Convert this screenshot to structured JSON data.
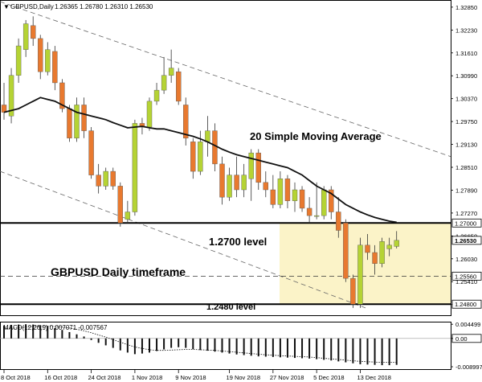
{
  "header": {
    "symbol_label": "GBPUSD,Daily",
    "ohlc": "1.26365 1.26780 1.26310 1.26530"
  },
  "annotations": {
    "sma_label": "20 Simple Moving Average",
    "level_1270": "1.2700 level",
    "level_1248": "1.2480 level",
    "timeframe": "GBPUSD Daily timeframe"
  },
  "colors": {
    "bull": "#b5d334",
    "bear": "#e8792f",
    "sma": "#111111",
    "highlight": "#fbf3c8",
    "frame": "#000000"
  },
  "macd": {
    "label": "MACD(12,26,9) 0.007071 -0.007567",
    "ticks": [
      "0.004499",
      "0.00",
      "-0.008997"
    ]
  },
  "chart_data": {
    "type": "candlestick",
    "symbol": "GBPUSD",
    "timeframe": "Daily",
    "last_ohlc": {
      "open": 1.26365,
      "high": 1.2678,
      "low": 1.2631,
      "close": 1.2653
    },
    "ylim": [
      1.245,
      1.33
    ],
    "y_ticks": [
      "1.32850",
      "1.32230",
      "1.31610",
      "1.30990",
      "1.30370",
      "1.29750",
      "1.29130",
      "1.28510",
      "1.27890",
      "1.27270",
      "1.26650",
      "1.26030",
      "1.25410",
      "1.24790"
    ],
    "price_tags": [
      {
        "value": 1.27,
        "label": "1.27000",
        "style": "solid"
      },
      {
        "value": 1.2653,
        "label": "1.26530",
        "style": "current"
      },
      {
        "value": 1.2556,
        "label": "1.25560",
        "style": "dashed"
      },
      {
        "value": 1.248,
        "label": "1.24800",
        "style": "solid"
      }
    ],
    "x_labels": [
      "8 Oct 2018",
      "16 Oct 2018",
      "24 Oct 2018",
      "1 Nov 2018",
      "9 Nov 2018",
      "19 Nov 2018",
      "27 Nov 2018",
      "5 Dec 2018",
      "13 Dec 2018"
    ],
    "x_label_index": [
      0,
      6,
      12,
      18,
      24,
      31,
      37,
      43,
      49
    ],
    "candles": [
      {
        "o": 1.302,
        "h": 1.308,
        "l": 1.298,
        "c": 1.3
      },
      {
        "o": 1.299,
        "h": 1.312,
        "l": 1.297,
        "c": 1.31
      },
      {
        "o": 1.31,
        "h": 1.32,
        "l": 1.308,
        "c": 1.318
      },
      {
        "o": 1.317,
        "h": 1.325,
        "l": 1.315,
        "c": 1.324
      },
      {
        "o": 1.3235,
        "h": 1.326,
        "l": 1.318,
        "c": 1.32
      },
      {
        "o": 1.32,
        "h": 1.321,
        "l": 1.309,
        "c": 1.311
      },
      {
        "o": 1.311,
        "h": 1.319,
        "l": 1.31,
        "c": 1.317
      },
      {
        "o": 1.3165,
        "h": 1.318,
        "l": 1.306,
        "c": 1.308
      },
      {
        "o": 1.308,
        "h": 1.309,
        "l": 1.3,
        "c": 1.301
      },
      {
        "o": 1.301,
        "h": 1.302,
        "l": 1.292,
        "c": 1.293
      },
      {
        "o": 1.293,
        "h": 1.304,
        "l": 1.292,
        "c": 1.302
      },
      {
        "o": 1.302,
        "h": 1.304,
        "l": 1.293,
        "c": 1.295
      },
      {
        "o": 1.295,
        "h": 1.296,
        "l": 1.282,
        "c": 1.283
      },
      {
        "o": 1.283,
        "h": 1.286,
        "l": 1.278,
        "c": 1.28
      },
      {
        "o": 1.28,
        "h": 1.285,
        "l": 1.279,
        "c": 1.284
      },
      {
        "o": 1.284,
        "h": 1.285,
        "l": 1.279,
        "c": 1.28
      },
      {
        "o": 1.28,
        "h": 1.281,
        "l": 1.269,
        "c": 1.27
      },
      {
        "o": 1.271,
        "h": 1.276,
        "l": 1.27,
        "c": 1.273
      },
      {
        "o": 1.273,
        "h": 1.298,
        "l": 1.272,
        "c": 1.297
      },
      {
        "o": 1.297,
        "h": 1.2985,
        "l": 1.294,
        "c": 1.296
      },
      {
        "o": 1.296,
        "h": 1.304,
        "l": 1.295,
        "c": 1.303
      },
      {
        "o": 1.303,
        "h": 1.308,
        "l": 1.302,
        "c": 1.306
      },
      {
        "o": 1.306,
        "h": 1.315,
        "l": 1.305,
        "c": 1.31
      },
      {
        "o": 1.31,
        "h": 1.317,
        "l": 1.308,
        "c": 1.312
      },
      {
        "o": 1.311,
        "h": 1.312,
        "l": 1.302,
        "c": 1.303
      },
      {
        "o": 1.302,
        "h": 1.304,
        "l": 1.291,
        "c": 1.293
      },
      {
        "o": 1.292,
        "h": 1.293,
        "l": 1.282,
        "c": 1.284
      },
      {
        "o": 1.284,
        "h": 1.295,
        "l": 1.283,
        "c": 1.292
      },
      {
        "o": 1.292,
        "h": 1.299,
        "l": 1.288,
        "c": 1.295
      },
      {
        "o": 1.295,
        "h": 1.297,
        "l": 1.284,
        "c": 1.286
      },
      {
        "o": 1.286,
        "h": 1.288,
        "l": 1.275,
        "c": 1.277
      },
      {
        "o": 1.277,
        "h": 1.285,
        "l": 1.276,
        "c": 1.283
      },
      {
        "o": 1.283,
        "h": 1.288,
        "l": 1.277,
        "c": 1.279
      },
      {
        "o": 1.279,
        "h": 1.286,
        "l": 1.277,
        "c": 1.283
      },
      {
        "o": 1.282,
        "h": 1.29,
        "l": 1.276,
        "c": 1.289
      },
      {
        "o": 1.289,
        "h": 1.29,
        "l": 1.279,
        "c": 1.281
      },
      {
        "o": 1.281,
        "h": 1.284,
        "l": 1.277,
        "c": 1.279
      },
      {
        "o": 1.279,
        "h": 1.283,
        "l": 1.274,
        "c": 1.275
      },
      {
        "o": 1.275,
        "h": 1.284,
        "l": 1.274,
        "c": 1.282
      },
      {
        "o": 1.282,
        "h": 1.283,
        "l": 1.274,
        "c": 1.276
      },
      {
        "o": 1.276,
        "h": 1.281,
        "l": 1.273,
        "c": 1.279
      },
      {
        "o": 1.279,
        "h": 1.28,
        "l": 1.273,
        "c": 1.274
      },
      {
        "o": 1.274,
        "h": 1.277,
        "l": 1.27,
        "c": 1.272
      },
      {
        "o": 1.272,
        "h": 1.281,
        "l": 1.271,
        "c": 1.272
      },
      {
        "o": 1.272,
        "h": 1.28,
        "l": 1.271,
        "c": 1.279
      },
      {
        "o": 1.279,
        "h": 1.28,
        "l": 1.271,
        "c": 1.273
      },
      {
        "o": 1.273,
        "h": 1.277,
        "l": 1.266,
        "c": 1.268
      },
      {
        "o": 1.27,
        "h": 1.271,
        "l": 1.254,
        "c": 1.255
      },
      {
        "o": 1.255,
        "h": 1.256,
        "l": 1.247,
        "c": 1.248
      },
      {
        "o": 1.248,
        "h": 1.266,
        "l": 1.247,
        "c": 1.264
      },
      {
        "o": 1.264,
        "h": 1.267,
        "l": 1.26,
        "c": 1.262
      },
      {
        "o": 1.262,
        "h": 1.264,
        "l": 1.256,
        "c": 1.259
      },
      {
        "o": 1.259,
        "h": 1.266,
        "l": 1.258,
        "c": 1.265
      },
      {
        "o": 1.263,
        "h": 1.266,
        "l": 1.261,
        "c": 1.264
      },
      {
        "o": 1.26365,
        "h": 1.2678,
        "l": 1.2631,
        "c": 1.2653
      }
    ],
    "sma20": [
      1.3,
      1.3005,
      1.301,
      1.302,
      1.303,
      1.304,
      1.3035,
      1.303,
      1.302,
      1.301,
      1.3,
      1.2995,
      1.299,
      1.2985,
      1.298,
      1.2972,
      1.2965,
      1.2958,
      1.296,
      1.2962,
      1.2958,
      1.2955,
      1.2955,
      1.295,
      1.2945,
      1.294,
      1.2935,
      1.2928,
      1.292,
      1.291,
      1.29,
      1.2892,
      1.2885,
      1.288,
      1.2875,
      1.287,
      1.2865,
      1.286,
      1.2855,
      1.285,
      1.284,
      1.283,
      1.2815,
      1.28,
      1.279,
      1.278,
      1.2765,
      1.275,
      1.274,
      1.273,
      1.2722,
      1.2715,
      1.271,
      1.2705,
      1.2702
    ],
    "macd_ylim": [
      -0.0095,
      0.0048
    ],
    "macd_hist": [
      0.004,
      0.0043,
      0.0044,
      0.0045,
      0.0044,
      0.0042,
      0.0038,
      0.0033,
      0.0027,
      0.002,
      0.0013,
      0.0006,
      -0.0005,
      -0.0014,
      -0.0022,
      -0.003,
      -0.0038,
      -0.0045,
      -0.005,
      -0.0048,
      -0.0045,
      -0.004,
      -0.0035,
      -0.003,
      -0.0028,
      -0.003,
      -0.0034,
      -0.0037,
      -0.0039,
      -0.0042,
      -0.0045,
      -0.0048,
      -0.0051,
      -0.0053,
      -0.0055,
      -0.0057,
      -0.0058,
      -0.0059,
      -0.006,
      -0.0061,
      -0.0062,
      -0.0063,
      -0.0064,
      -0.0066,
      -0.0068,
      -0.007,
      -0.0073,
      -0.0076,
      -0.0079,
      -0.0082,
      -0.0083,
      -0.0084,
      -0.0085,
      -0.0085,
      -0.0084
    ],
    "macd_signal": [
      0.003,
      0.0032,
      0.0034,
      0.0036,
      0.0038,
      0.0039,
      0.0039,
      0.0038,
      0.0036,
      0.0033,
      0.0029,
      0.0024,
      0.0018,
      0.0011,
      0.0004,
      -0.0004,
      -0.0012,
      -0.002,
      -0.0027,
      -0.0032,
      -0.0036,
      -0.0038,
      -0.0038,
      -0.0037,
      -0.0036,
      -0.0035,
      -0.0035,
      -0.0036,
      -0.0037,
      -0.0038,
      -0.004,
      -0.0042,
      -0.0044,
      -0.0046,
      -0.0048,
      -0.005,
      -0.0052,
      -0.0053,
      -0.0055,
      -0.0056,
      -0.0057,
      -0.0058,
      -0.0059,
      -0.0061,
      -0.0063,
      -0.0065,
      -0.0067,
      -0.0069,
      -0.0071,
      -0.0073,
      -0.0074,
      -0.0075,
      -0.0076,
      -0.0076,
      -0.0076
    ]
  }
}
